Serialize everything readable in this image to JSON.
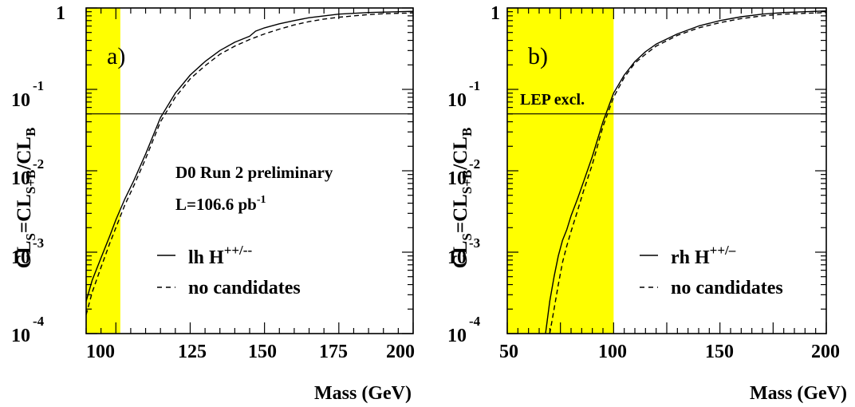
{
  "chart_data": [
    {
      "type": "line",
      "panel_label": "a)",
      "xlabel": "Mass (GeV)",
      "ylabel": {
        "p1": "CL",
        "s1": "S",
        "p2": "=CL",
        "s2": "S+B",
        "p3": "/CL",
        "s3": "B"
      },
      "y_scale": "log",
      "xlim": [
        90,
        200
      ],
      "ylim": [
        0.0001,
        1
      ],
      "x_ticks": [
        100,
        125,
        150,
        175,
        200
      ],
      "y_ticks": [
        {
          "base": "10",
          "exp": "-4"
        },
        {
          "base": "10",
          "exp": "-3"
        },
        {
          "base": "10",
          "exp": "-2"
        },
        {
          "base": "10",
          "exp": "-1"
        },
        {
          "base": "1",
          "exp": ""
        }
      ],
      "grid": false,
      "shaded_region": {
        "x": [
          90,
          101.5
        ],
        "color": "#ffff00"
      },
      "hline": 0.05,
      "annotations": [
        {
          "text": "D0 Run 2 preliminary"
        },
        {
          "text": "L=106.6 pb",
          "sup": "-1"
        }
      ],
      "legend": {
        "placement": "lower-center",
        "items": [
          {
            "text": "lh H",
            "sup": "++/--",
            "style": "solid"
          },
          {
            "text": "no candidates",
            "sup": "",
            "style": "dashed"
          }
        ]
      },
      "series": [
        {
          "style": "solid",
          "x": [
            90,
            92,
            95,
            98,
            100,
            103,
            106,
            110,
            115,
            120,
            125,
            130,
            135,
            140,
            145,
            147,
            150,
            155,
            160,
            165,
            170,
            175,
            180,
            185,
            190,
            195,
            200
          ],
          "y": [
            0.00025,
            0.00045,
            0.00085,
            0.0016,
            0.0025,
            0.0045,
            0.0075,
            0.016,
            0.045,
            0.09,
            0.15,
            0.22,
            0.3,
            0.38,
            0.45,
            0.52,
            0.57,
            0.64,
            0.7,
            0.76,
            0.8,
            0.84,
            0.86,
            0.88,
            0.89,
            0.9,
            0.91
          ]
        },
        {
          "style": "dashed",
          "x": [
            90,
            92,
            95,
            98,
            100,
            103,
            106,
            110,
            115,
            120,
            125,
            130,
            135,
            140,
            145,
            150,
            155,
            160,
            165,
            170,
            175,
            180,
            185,
            190,
            195,
            200
          ],
          "y": [
            0.00017,
            0.00032,
            0.00065,
            0.0013,
            0.002,
            0.0038,
            0.0065,
            0.014,
            0.04,
            0.08,
            0.135,
            0.195,
            0.27,
            0.34,
            0.41,
            0.48,
            0.55,
            0.62,
            0.68,
            0.73,
            0.77,
            0.8,
            0.83,
            0.85,
            0.86,
            0.87
          ]
        }
      ]
    },
    {
      "type": "line",
      "panel_label": "b)",
      "xlabel": "Mass (GeV)",
      "ylabel": {
        "p1": "CL",
        "s1": "S",
        "p2": "=CL",
        "s2": "S+B",
        "p3": "/CL",
        "s3": "B"
      },
      "y_scale": "log",
      "xlim": [
        50,
        200
      ],
      "ylim": [
        0.0001,
        1
      ],
      "x_ticks": [
        50,
        100,
        150,
        200
      ],
      "y_ticks": [
        {
          "base": "10",
          "exp": "-4"
        },
        {
          "base": "10",
          "exp": "-3"
        },
        {
          "base": "10",
          "exp": "-2"
        },
        {
          "base": "10",
          "exp": "-1"
        },
        {
          "base": "1",
          "exp": ""
        }
      ],
      "grid": false,
      "shaded_region": {
        "x": [
          50,
          100
        ],
        "color": "#ffff00",
        "label": "LEP excl."
      },
      "hline": 0.05,
      "legend": {
        "placement": "lower-right",
        "items": [
          {
            "text": "rh H",
            "sup": "++/–",
            "style": "solid"
          },
          {
            "text": "no candidates",
            "sup": "",
            "style": "dashed"
          }
        ]
      },
      "series": [
        {
          "style": "solid",
          "x": [
            68,
            70,
            72,
            74,
            76,
            78,
            80,
            83,
            86,
            90,
            95,
            100,
            105,
            110,
            115,
            120,
            130,
            140,
            150,
            160,
            170,
            180,
            190,
            200
          ],
          "y": [
            0.0001,
            0.00025,
            0.0005,
            0.0009,
            0.0014,
            0.0019,
            0.0028,
            0.0045,
            0.0075,
            0.015,
            0.04,
            0.09,
            0.15,
            0.22,
            0.29,
            0.36,
            0.48,
            0.6,
            0.7,
            0.78,
            0.84,
            0.88,
            0.9,
            0.92
          ]
        },
        {
          "style": "dashed",
          "x": [
            70,
            72,
            74,
            76,
            78,
            80,
            83,
            86,
            90,
            95,
            100,
            105,
            110,
            115,
            120,
            130,
            140,
            150,
            160,
            170,
            180,
            190,
            200
          ],
          "y": [
            0.0001,
            0.0002,
            0.0004,
            0.00075,
            0.0012,
            0.0018,
            0.0032,
            0.0058,
            0.012,
            0.035,
            0.08,
            0.14,
            0.21,
            0.27,
            0.34,
            0.46,
            0.57,
            0.66,
            0.74,
            0.8,
            0.84,
            0.86,
            0.88
          ]
        }
      ]
    }
  ]
}
